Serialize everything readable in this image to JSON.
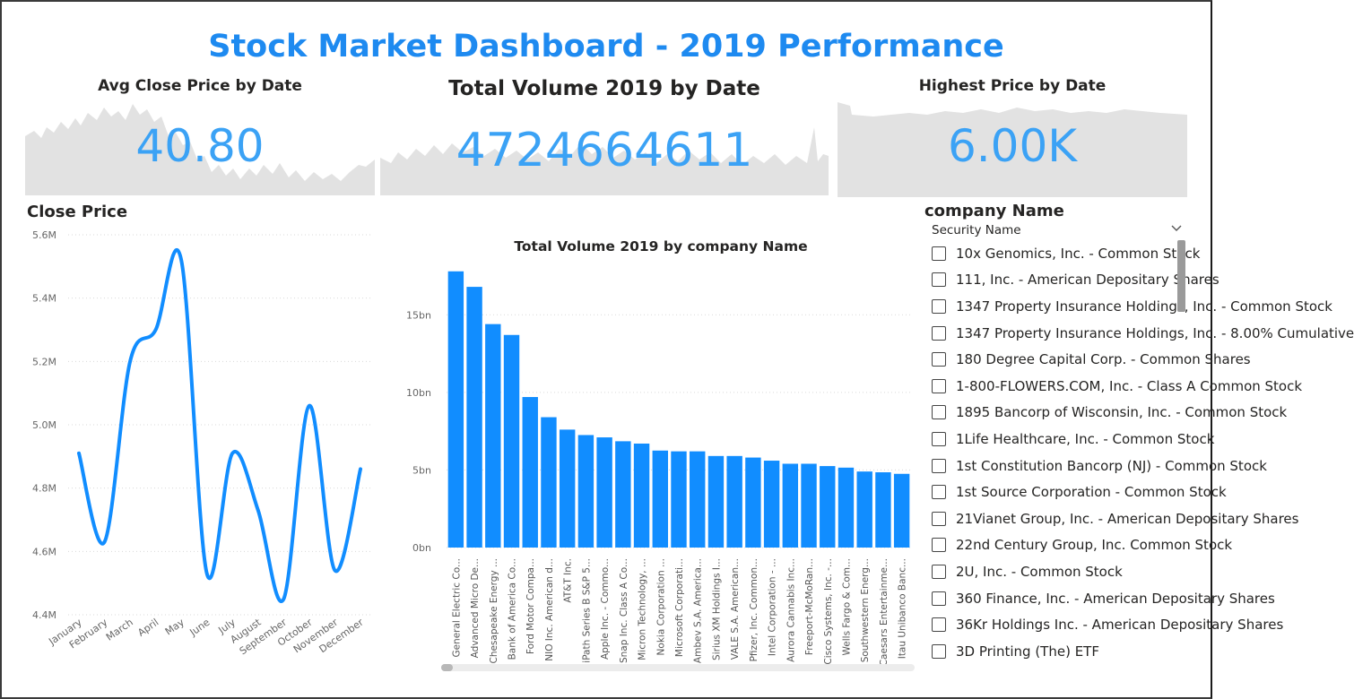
{
  "dashboard": {
    "title": "Stock Market Dashboard - 2019 Performance"
  },
  "cards": [
    {
      "title": "Avg Close Price by Date",
      "value": "40.80"
    },
    {
      "title": "Total Volume 2019 by Date",
      "value": "4724664611"
    },
    {
      "title": "Highest Price by Date",
      "value": "6.00K"
    }
  ],
  "slicer": {
    "title": "company Name",
    "header": "Security Name",
    "items": [
      "10x Genomics, Inc. - Common Stock",
      "111, Inc. - American Depositary Shares",
      "1347 Property Insurance Holdings, Inc. - Common Stock",
      "1347 Property Insurance Holdings, Inc. - 8.00% Cumulative",
      "180 Degree Capital Corp. - Common Shares",
      "1-800-FLOWERS.COM, Inc. - Class A Common Stock",
      "1895 Bancorp of Wisconsin, Inc. - Common Stock",
      "1Life Healthcare, Inc. - Common Stock",
      "1st Constitution Bancorp (NJ) - Common Stock",
      "1st Source Corporation - Common Stock",
      "21Vianet Group, Inc. - American Depositary Shares",
      "22nd Century Group, Inc. Common Stock",
      "2U, Inc. - Common Stock",
      "360 Finance, Inc. - American Depositary Shares",
      "36Kr Holdings Inc. - American Depositary Shares",
      "3D Printing (The) ETF"
    ]
  },
  "chart_data": [
    {
      "type": "line",
      "title": "Close Price",
      "x": [
        "January",
        "February",
        "March",
        "April",
        "May",
        "June",
        "July",
        "August",
        "September",
        "October",
        "November",
        "December"
      ],
      "series": [
        {
          "values": [
            4.91,
            4.63,
            5.2,
            5.3,
            5.52,
            4.53,
            4.91,
            4.73,
            4.45,
            5.06,
            4.54,
            4.86
          ]
        }
      ],
      "yticks": [
        "4.4M",
        "4.6M",
        "4.8M",
        "5.0M",
        "5.2M",
        "5.4M",
        "5.6M"
      ],
      "ylim": [
        4.4,
        5.6
      ],
      "grid": true,
      "color": "#118dff"
    },
    {
      "type": "bar",
      "title": "Total Volume 2019 by company Name",
      "categories": [
        "General Electric Co...",
        "Advanced Micro De...",
        "Chesapeake Energy ...",
        "Bank of America Co...",
        "Ford Motor Compa...",
        "NIO Inc. American d...",
        "AT&T Inc.",
        "iPath Series B S&P 5...",
        "Apple Inc. - Commo...",
        "Snap Inc. Class A Co...",
        "Micron Technology, ...",
        "Nokia Corporation ...",
        "Microsoft Corporati...",
        "Ambev S.A. America...",
        "Sirius XM Holdings I...",
        "VALE S.A. American...",
        "Pfizer, Inc. Common...",
        "Intel Corporation - ...",
        "Aurora Cannabis Inc...",
        "Freeport-McMoRan...",
        "Cisco Systems, Inc. -...",
        "Wells Fargo & Com...",
        "Southwestern Energ...",
        "Caesars Entertainme...",
        "Itau Unibanco Banc..."
      ],
      "values": [
        17.8,
        16.8,
        14.4,
        13.7,
        9.7,
        8.4,
        7.6,
        7.25,
        7.1,
        6.85,
        6.7,
        6.25,
        6.2,
        6.2,
        5.9,
        5.9,
        5.8,
        5.6,
        5.4,
        5.4,
        5.25,
        5.15,
        4.9,
        4.85,
        4.75
      ],
      "yticks": [
        "0bn",
        "5bn",
        "10bn",
        "15bn"
      ],
      "ylim": [
        0,
        19
      ],
      "grid": true,
      "color": "#118dff"
    }
  ]
}
